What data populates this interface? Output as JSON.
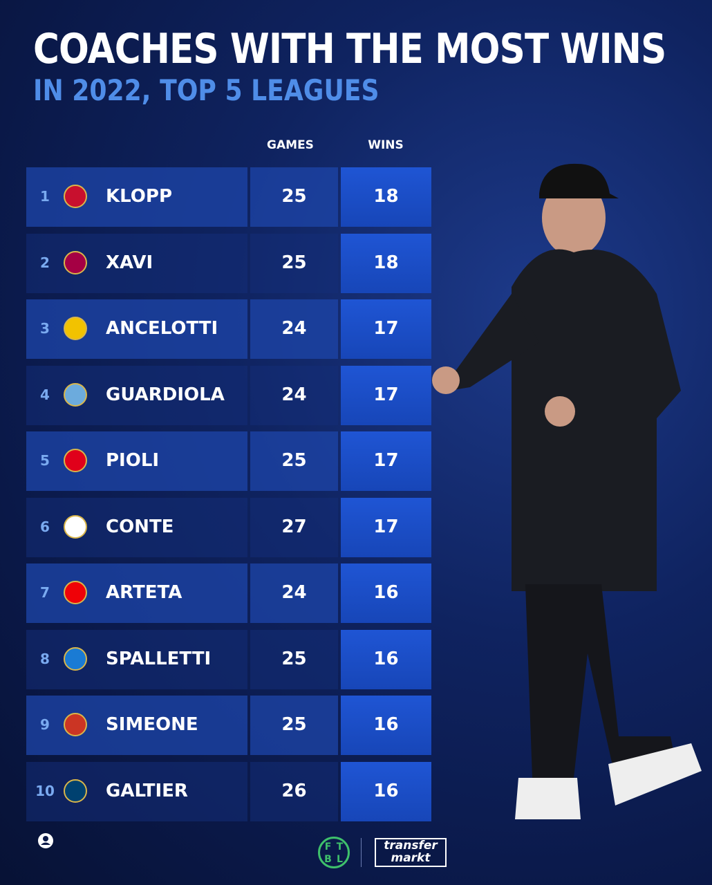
{
  "header": {
    "title": "COACHES WITH THE MOST WINS",
    "subtitle": "IN 2022, TOP 5 LEAGUES"
  },
  "table": {
    "columns": [
      "GAMES",
      "WINS"
    ],
    "rows": [
      [
        "1",
        "KLOPP",
        "25",
        "18"
      ],
      [
        "2",
        "XAVI",
        "25",
        "18"
      ],
      [
        "3",
        "ANCELOTTI",
        "24",
        "17"
      ],
      [
        "4",
        "GUARDIOLA",
        "24",
        "17"
      ],
      [
        "5",
        "PIOLI",
        "25",
        "17"
      ],
      [
        "6",
        "CONTE",
        "27",
        "17"
      ],
      [
        "7",
        "ARTETA",
        "24",
        "16"
      ],
      [
        "8",
        "SPALLETTI",
        "25",
        "16"
      ],
      [
        "9",
        "SIMEONE",
        "25",
        "16"
      ],
      [
        "10",
        "GALTIER",
        "26",
        "16"
      ]
    ]
  },
  "footer": {
    "ftbl": [
      "F",
      "T",
      "B",
      "L"
    ],
    "transfermarkt": [
      "transfer",
      "markt"
    ]
  }
}
